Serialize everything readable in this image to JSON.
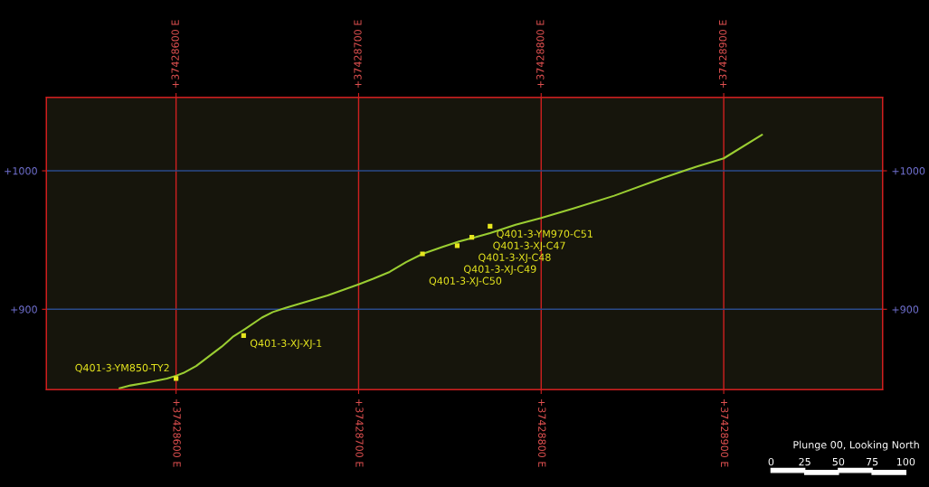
{
  "chart_data": {
    "type": "line",
    "xlim": [
      37428529,
      37428987
    ],
    "ylim": [
      842,
      1053
    ],
    "xticks": [
      {
        "value": 37428600,
        "label": "+37428600 E"
      },
      {
        "value": 37428700,
        "label": "+37428700 E"
      },
      {
        "value": 37428800,
        "label": "+37428800 E"
      },
      {
        "value": 37428900,
        "label": "+37428900 E"
      }
    ],
    "x2lim": [
      37428529,
      37428987
    ],
    "x2ticks": [
      {
        "value": 37428600,
        "label": "+37428600 E"
      },
      {
        "value": 37428700,
        "label": "+37428700 E"
      },
      {
        "value": 37428800,
        "label": "+37428800 E"
      },
      {
        "value": 37428900,
        "label": "+37428900 E"
      }
    ],
    "yticks": [
      {
        "value": 900,
        "label": "+900"
      },
      {
        "value": 1000,
        "label": "+1000"
      }
    ],
    "y2lim": [
      842,
      1053
    ],
    "y2ticks": [
      {
        "value": 900,
        "label": "+900"
      },
      {
        "value": 1000,
        "label": "+1000"
      }
    ],
    "grid": true,
    "legend": false,
    "series": [
      {
        "color": "#9acd32",
        "marker": "none",
        "line_style": "solid",
        "x": [
          37428569,
          37428575,
          37428584,
          37428595,
          37428600,
          37428604,
          37428611,
          37428618,
          37428625,
          37428631,
          37428638,
          37428647,
          37428653,
          37428660,
          37428670,
          37428683,
          37428700,
          37428708,
          37428717,
          37428726,
          37428735,
          37428746,
          37428755,
          37428764,
          37428772,
          37428786,
          37428800,
          37428818,
          37428840,
          37428867,
          37428885,
          37428900,
          37428921
        ],
        "values": [
          843,
          845,
          847,
          850,
          852,
          854,
          859,
          866,
          873,
          880,
          886,
          894,
          898,
          901,
          905,
          910,
          918,
          922,
          927,
          934,
          940,
          945,
          949,
          952,
          955,
          961,
          966,
          973,
          982,
          995,
          1003,
          1009,
          1026
        ]
      },
      {
        "type": "scatter",
        "color": "#e6e61e",
        "marker": "square",
        "x": [
          37428600,
          37428637,
          37428735,
          37428754,
          37428762,
          37428772
        ],
        "values": [
          850,
          881,
          940,
          946,
          952,
          960
        ]
      }
    ],
    "annotations": [
      {
        "text": "Q401-3-YM850-TY2",
        "x": 37428600,
        "y": 850
      },
      {
        "text": "Q401-3-XJ-XJ-1",
        "x": 37428637,
        "y": 881
      },
      {
        "text": "Q401-3-XJ-C50",
        "x": 37428735,
        "y": 940
      },
      {
        "text": "Q401-3-XJ-C49",
        "x": 37428754,
        "y": 946
      },
      {
        "text": "Q401-3-XJ-C48",
        "x": 37428762,
        "y": 952
      },
      {
        "text": "Q401-3-XJ-C47",
        "x": 37428770,
        "y": 957
      },
      {
        "text": "Q401-3-YM970-C51",
        "x": 37428772,
        "y": 960
      },
      "Plunge 00, Looking North",
      "0",
      "25",
      "50",
      "75",
      "100"
    ]
  }
}
